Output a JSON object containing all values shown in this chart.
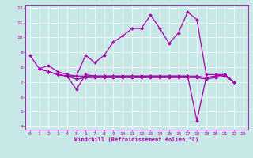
{
  "xlabel": "Windchill (Refroidissement éolien,°C)",
  "xlim": [
    -0.5,
    23.5
  ],
  "ylim": [
    3.8,
    12.2
  ],
  "yticks": [
    4,
    5,
    6,
    7,
    8,
    9,
    10,
    11,
    12
  ],
  "xticks": [
    0,
    1,
    2,
    3,
    4,
    5,
    6,
    7,
    8,
    9,
    10,
    11,
    12,
    13,
    14,
    15,
    16,
    17,
    18,
    19,
    20,
    21,
    22,
    23
  ],
  "bg_color": "#c8e8e8",
  "line_color": "#aa00aa",
  "line1_x": [
    0,
    1,
    2,
    3,
    4,
    5,
    6,
    7,
    8,
    9,
    10,
    11,
    12,
    13,
    14,
    15,
    16,
    17,
    18,
    19,
    20,
    21,
    22
  ],
  "line1_y": [
    8.8,
    7.9,
    8.1,
    7.7,
    7.5,
    7.4,
    8.8,
    8.3,
    8.8,
    9.7,
    10.1,
    10.6,
    10.6,
    11.5,
    10.6,
    9.6,
    10.3,
    11.7,
    11.2,
    7.5,
    7.5,
    7.5,
    7.0
  ],
  "line2_x": [
    1,
    2,
    3,
    4,
    5,
    6,
    7,
    8,
    9,
    10,
    11,
    12,
    13,
    14,
    15,
    16,
    17,
    18,
    19,
    20,
    21,
    22
  ],
  "line2_y": [
    7.9,
    7.7,
    7.5,
    7.4,
    6.5,
    7.5,
    7.4,
    7.4,
    7.4,
    7.4,
    7.4,
    7.4,
    7.4,
    7.4,
    7.4,
    7.4,
    7.4,
    4.4,
    7.3,
    7.4,
    7.5,
    7.0
  ],
  "line3_x": [
    1,
    2,
    3,
    4,
    5,
    6,
    7,
    8,
    9,
    10,
    11,
    12,
    13,
    14,
    15,
    16,
    17,
    18,
    19,
    20,
    21,
    22
  ],
  "line3_y": [
    7.9,
    7.7,
    7.5,
    7.4,
    7.2,
    7.3,
    7.3,
    7.3,
    7.3,
    7.3,
    7.3,
    7.3,
    7.3,
    7.3,
    7.3,
    7.3,
    7.3,
    7.3,
    7.2,
    7.3,
    7.4,
    7.0
  ],
  "line4_x": [
    1,
    2,
    3,
    4,
    5,
    6,
    7,
    8,
    9,
    10,
    11,
    12,
    13,
    14,
    15,
    16,
    17,
    18,
    19,
    20,
    21,
    22
  ],
  "line4_y": [
    7.9,
    7.7,
    7.5,
    7.4,
    7.4,
    7.4,
    7.4,
    7.4,
    7.4,
    7.4,
    7.4,
    7.4,
    7.4,
    7.4,
    7.4,
    7.4,
    7.4,
    7.4,
    7.3,
    7.4,
    7.5,
    7.0
  ]
}
